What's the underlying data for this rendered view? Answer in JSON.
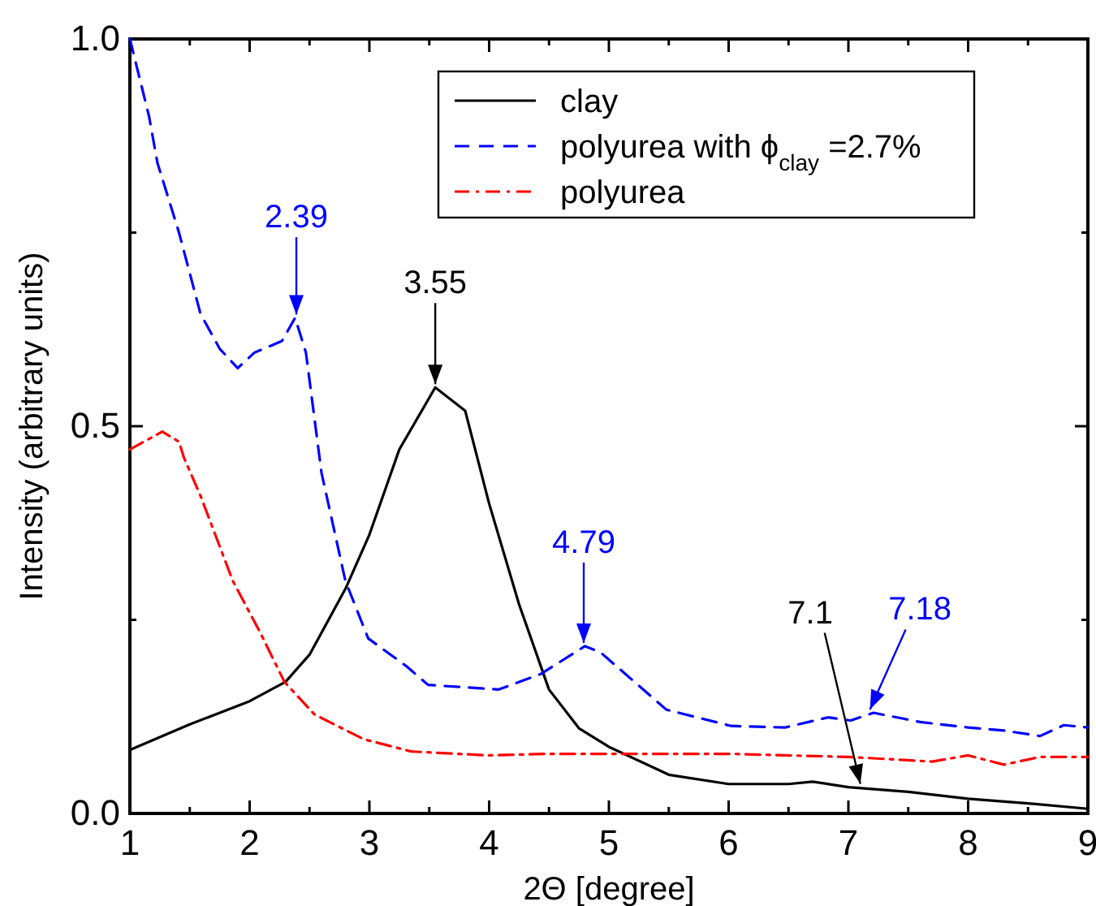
{
  "chart_data": {
    "type": "line",
    "xlabel": "2Θ [degree]",
    "ylabel": "Intensity (arbitrary units)",
    "xlim": [
      1,
      9
    ],
    "ylim": [
      0,
      1
    ],
    "xticks": [
      1,
      {
        "value": 1.5,
        "label": null
      },
      2,
      {
        "value": 2.5,
        "label": null
      },
      3,
      {
        "value": 3.5,
        "label": null
      },
      4,
      {
        "value": 4.5,
        "label": null
      },
      5,
      {
        "value": 5.5,
        "label": null
      },
      6,
      {
        "value": 6.5,
        "label": null
      },
      7,
      {
        "value": 7.5,
        "label": null
      },
      8,
      {
        "value": 8.5,
        "label": null
      },
      9
    ],
    "yticks": [
      {
        "value": 0,
        "label": "0.0"
      },
      {
        "value": 0.25,
        "label": null
      },
      {
        "value": 0.5,
        "label": "0.5"
      },
      {
        "value": 0.75,
        "label": null
      },
      {
        "value": 1,
        "label": "1.0"
      }
    ],
    "grid": false,
    "legend": "top right",
    "marker": "none",
    "series": [
      {
        "name": "clay",
        "color": "#000000",
        "line_style": "solid",
        "x": [
          1,
          1.5,
          2,
          2.3,
          2.5,
          2.8,
          3,
          3.25,
          3.55,
          3.8,
          4,
          4.25,
          4.5,
          4.75,
          5,
          5.5,
          6,
          6.5,
          6.7,
          7,
          7.5,
          8,
          8.5,
          9
        ],
        "values": [
          0.082,
          0.115,
          0.145,
          0.17,
          0.205,
          0.29,
          0.36,
          0.47,
          0.55,
          0.52,
          0.4,
          0.27,
          0.16,
          0.11,
          0.086,
          0.05,
          0.038,
          0.038,
          0.041,
          0.034,
          0.028,
          0.019,
          0.013,
          0.006
        ]
      },
      {
        "name": "polyurea with ϕ$_{clay}$ =2.7%",
        "color": "#0000ff",
        "line_style": "dashed",
        "x": [
          1,
          1.16,
          1.23,
          1.41,
          1.59,
          1.75,
          1.9,
          2.04,
          2.27,
          2.38,
          2.47,
          2.6,
          2.8,
          2.99,
          3.31,
          3.49,
          4.08,
          4.43,
          4.8,
          4.93,
          5.48,
          6.02,
          6.47,
          6.83,
          7.02,
          7.21,
          7.6,
          8,
          8.3,
          8.6,
          8.8,
          9
        ],
        "values": [
          1,
          0.9,
          0.84,
          0.75,
          0.645,
          0.6,
          0.575,
          0.595,
          0.61,
          0.64,
          0.595,
          0.44,
          0.3,
          0.226,
          0.19,
          0.166,
          0.16,
          0.18,
          0.216,
          0.208,
          0.134,
          0.113,
          0.111,
          0.124,
          0.12,
          0.13,
          0.118,
          0.111,
          0.107,
          0.1,
          0.114,
          0.111
        ]
      },
      {
        "name": "polyurea",
        "color": "#ff0000",
        "line_style": "dashdot",
        "x": [
          1,
          1.27,
          1.41,
          1.45,
          1.59,
          1.86,
          2.09,
          2.29,
          2.54,
          2.95,
          3.35,
          3.99,
          4.5,
          4.93,
          6,
          7,
          7.7,
          8,
          8.3,
          8.6,
          9
        ],
        "values": [
          0.47,
          0.493,
          0.48,
          0.46,
          0.41,
          0.3,
          0.233,
          0.17,
          0.128,
          0.096,
          0.08,
          0.075,
          0.077,
          0.077,
          0.077,
          0.073,
          0.067,
          0.075,
          0.063,
          0.073,
          0.073
        ]
      }
    ],
    "annotations": [
      {
        "text": "2.39",
        "x": 2.39,
        "y": 0.64
      },
      {
        "text": "3.55",
        "x": 3.55,
        "y": 0.55
      },
      {
        "text": "4.79",
        "x": 4.79,
        "y": 0.216
      },
      {
        "text": "7.1",
        "x": 7.1,
        "y": 0.034
      },
      {
        "text": "7.18",
        "x": 7.18,
        "y": 0.13
      }
    ]
  }
}
